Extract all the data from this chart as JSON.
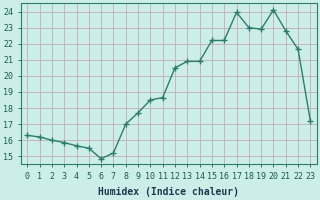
{
  "x": [
    0,
    1,
    2,
    3,
    4,
    5,
    6,
    7,
    8,
    9,
    10,
    11,
    12,
    13,
    14,
    15,
    16,
    17,
    18,
    19,
    20,
    21,
    22,
    23
  ],
  "y": [
    16.3,
    16.2,
    16.0,
    15.85,
    15.65,
    15.5,
    14.85,
    15.2,
    17.0,
    17.7,
    18.5,
    18.65,
    20.5,
    20.9,
    20.9,
    22.2,
    22.2,
    23.95,
    23.0,
    22.9,
    24.1,
    22.8,
    21.65,
    17.2
  ],
  "line_color": "#2d7d6e",
  "marker": "+",
  "marker_size": 4,
  "linewidth": 1.0,
  "bg_color": "#cceee8",
  "grid_color": "#c4aab4",
  "xlabel": "Humidex (Indice chaleur)",
  "xlim": [
    -0.5,
    23.5
  ],
  "ylim": [
    14.5,
    24.5
  ],
  "yticks": [
    15,
    16,
    17,
    18,
    19,
    20,
    21,
    22,
    23,
    24
  ],
  "xticks": [
    0,
    1,
    2,
    3,
    4,
    5,
    6,
    7,
    8,
    9,
    10,
    11,
    12,
    13,
    14,
    15,
    16,
    17,
    18,
    19,
    20,
    21,
    22,
    23
  ],
  "tick_fontsize": 6,
  "label_fontsize": 7,
  "tick_color": "#1a5a50",
  "label_color": "#1a3a50"
}
